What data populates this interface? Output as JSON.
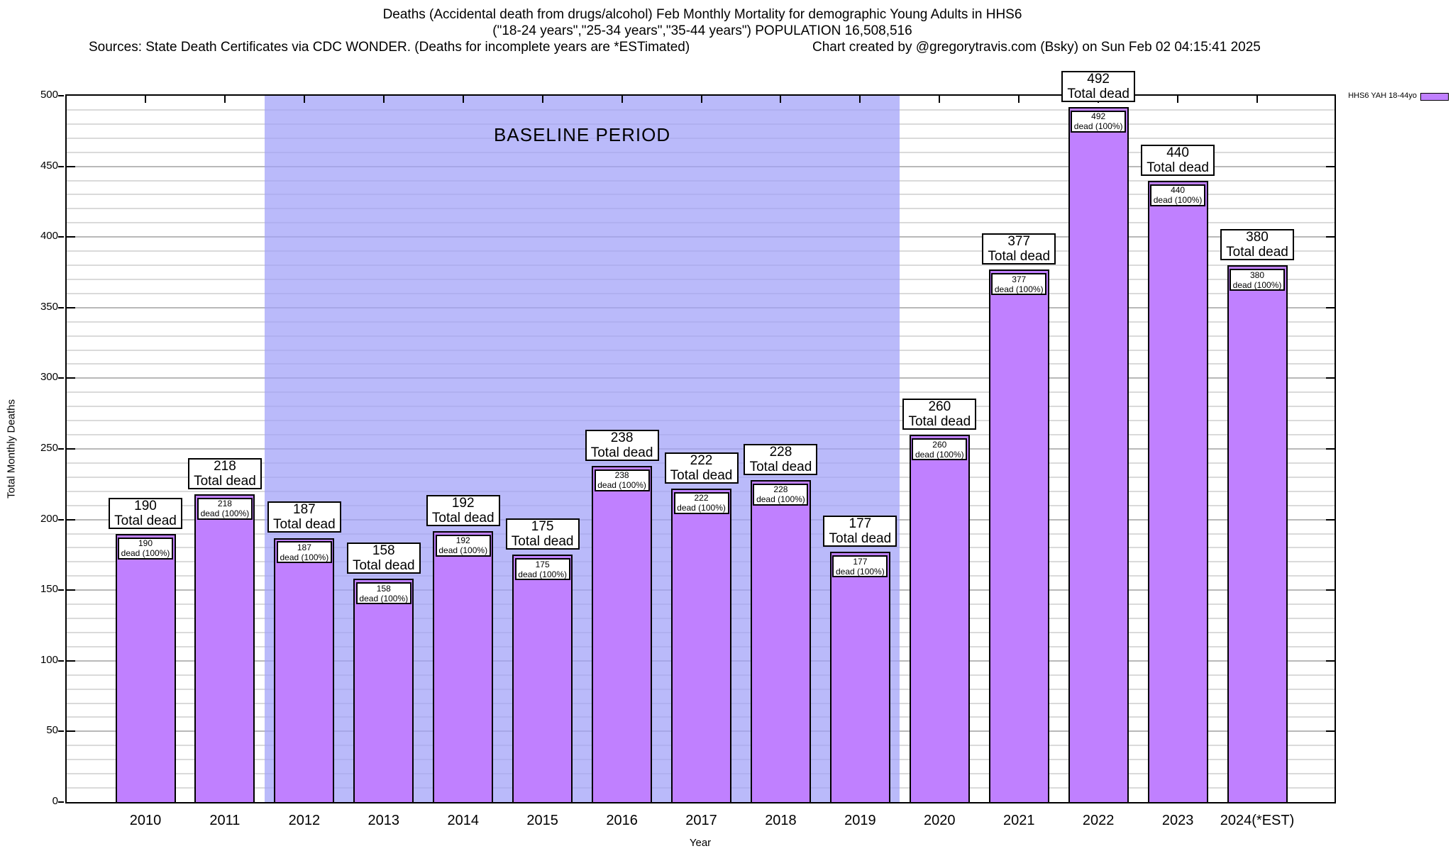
{
  "header": {
    "title_line1": "Deaths (Accidental death from drugs/alcohol) Feb Monthly Mortality for demographic Young Adults in HHS6",
    "title_line2": "(\"18-24 years\",\"25-34 years\",\"35-44 years\") POPULATION 16,508,516",
    "sources": "Sources: State Death Certificates via CDC WONDER. (Deaths for incomplete years are *ESTimated)",
    "credit": "Chart created by @gregorytravis.com (Bsky) on Sun Feb 02 04:15:41 2025"
  },
  "legend": {
    "label": "HHS6 YAH 18-44yo",
    "swatch_color": "#c080ff",
    "position": "top-right"
  },
  "chart_data": {
    "type": "bar",
    "title": "Deaths (Accidental death from drugs/alcohol) Feb Monthly Mortality for demographic Young Adults in HHS6",
    "subtitle": "(\"18-24 years\",\"25-34 years\",\"35-44 years\") POPULATION 16,508,516",
    "xlabel": "Year",
    "ylabel": "Total Monthly Deaths",
    "ylim": [
      0,
      500
    ],
    "ytick_interval": 50,
    "minor_grid_interval": 10,
    "grid": true,
    "legend_position": "top-right",
    "bar_color": "#c080ff",
    "bar_border_color": "#000000",
    "categories": [
      "2010",
      "2011",
      "2012",
      "2013",
      "2014",
      "2015",
      "2016",
      "2017",
      "2018",
      "2019",
      "2020",
      "2021",
      "2022",
      "2023",
      "2024(*EST)"
    ],
    "values": [
      190,
      218,
      187,
      158,
      192,
      175,
      238,
      222,
      228,
      177,
      260,
      377,
      492,
      440,
      380
    ],
    "series": [
      {
        "name": "HHS6 YAH 18-44yo",
        "values": [
          190,
          218,
          187,
          158,
          192,
          175,
          238,
          222,
          228,
          177,
          260,
          377,
          492,
          440,
          380
        ]
      }
    ],
    "baseline_region": {
      "label": "BASELINE PERIOD",
      "start_category": "2012",
      "end_category": "2019",
      "color": "#bdbdf8"
    },
    "bar_annotations": [
      {
        "above": [
          "190",
          "Total dead"
        ],
        "inner": [
          "190",
          "dead (100%)"
        ]
      },
      {
        "above": [
          "218",
          "Total dead"
        ],
        "inner": [
          "218",
          "dead (100%)"
        ]
      },
      {
        "above": [
          "187",
          "Total dead"
        ],
        "inner": [
          "187",
          "dead (100%)"
        ]
      },
      {
        "above": [
          "158",
          "Total dead"
        ],
        "inner": [
          "158",
          "dead (100%)"
        ]
      },
      {
        "above": [
          "192",
          "Total dead"
        ],
        "inner": [
          "192",
          "dead (100%)"
        ]
      },
      {
        "above": [
          "175",
          "Total dead"
        ],
        "inner": [
          "175",
          "dead (100%)"
        ]
      },
      {
        "above": [
          "238",
          "Total dead"
        ],
        "inner": [
          "238",
          "dead (100%)"
        ]
      },
      {
        "above": [
          "222",
          "Total dead"
        ],
        "inner": [
          "222",
          "dead (100%)"
        ]
      },
      {
        "above": [
          "228",
          "Total dead"
        ],
        "inner": [
          "228",
          "dead (100%)"
        ]
      },
      {
        "above": [
          "177",
          "Total dead"
        ],
        "inner": [
          "177",
          "dead (100%)"
        ]
      },
      {
        "above": [
          "260",
          "Total dead"
        ],
        "inner": [
          "260",
          "dead (100%)"
        ]
      },
      {
        "above": [
          "377",
          "Total dead"
        ],
        "inner": [
          "377",
          "dead (100%)"
        ]
      },
      {
        "above": [
          "492",
          "Total dead"
        ],
        "inner": [
          "492",
          "dead (100%)"
        ]
      },
      {
        "above": [
          "440",
          "Total dead"
        ],
        "inner": [
          "440",
          "dead (100%)"
        ]
      },
      {
        "above": [
          "380",
          "Total dead"
        ],
        "inner": [
          "380",
          "dead (100%)"
        ]
      }
    ],
    "ytick_labels": [
      "0",
      "50",
      "100",
      "150",
      "200",
      "250",
      "300",
      "350",
      "400",
      "450",
      "500"
    ]
  }
}
